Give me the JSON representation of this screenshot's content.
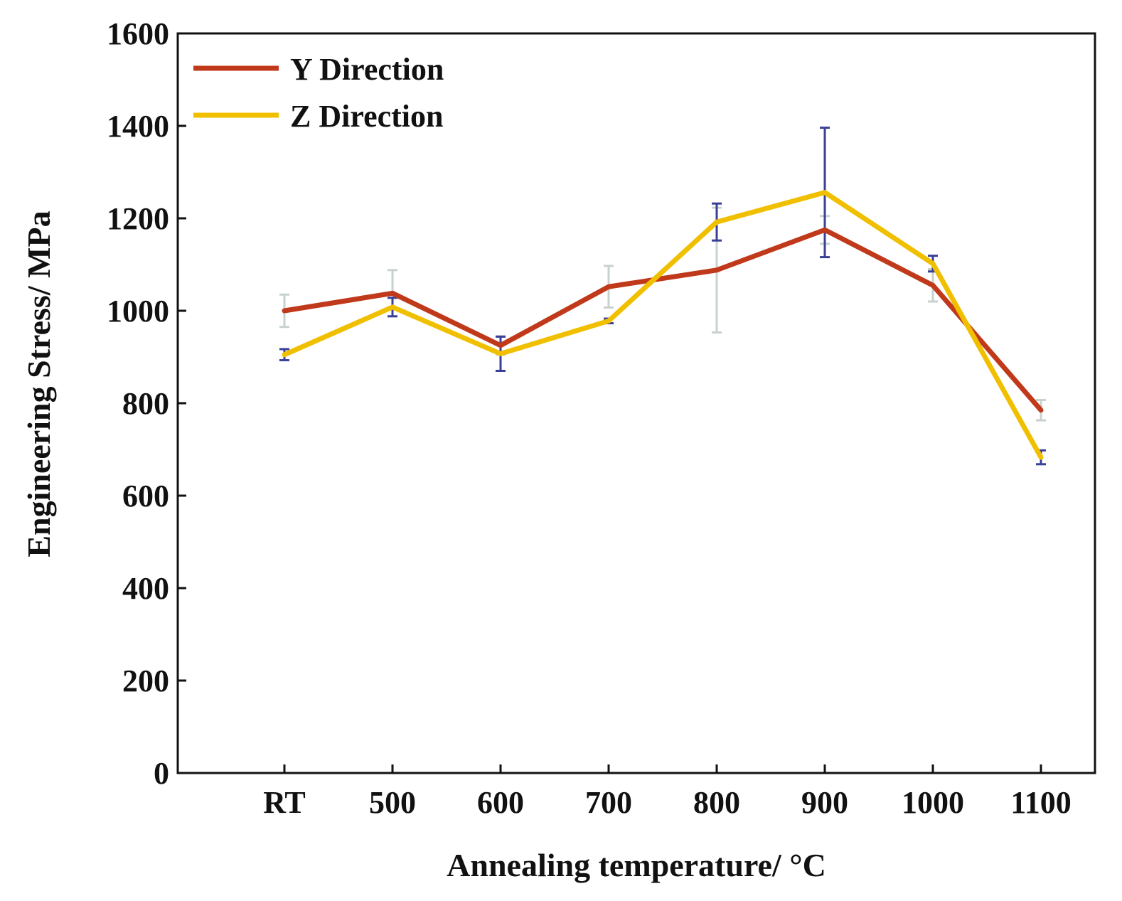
{
  "chart_data": {
    "type": "line",
    "xlabel": "Annealing temperature/ °C",
    "ylabel": "Engineering Stress/ MPa",
    "categories": [
      "RT",
      "500",
      "600",
      "700",
      "800",
      "900",
      "1000",
      "1100"
    ],
    "ylim": [
      0,
      1600
    ],
    "yticks": [
      "0",
      "200",
      "400",
      "600",
      "800",
      "1000",
      "1200",
      "1400",
      "1600"
    ],
    "legend_position": "top-left",
    "grid": false,
    "series": [
      {
        "name": "Y Direction",
        "color": "#c0391a",
        "errorbar_color": "#c8d2cc",
        "values": [
          1000,
          1038,
          925,
          1052,
          1088,
          1175,
          1055,
          785
        ],
        "errors": [
          35,
          50,
          20,
          45,
          135,
          30,
          35,
          22
        ]
      },
      {
        "name": "Z Direction",
        "color": "#f0c000",
        "errorbar_color": "#3a3f98",
        "values": [
          905,
          1008,
          907,
          978,
          1192,
          1256,
          1102,
          683
        ],
        "errors": [
          12,
          20,
          37,
          5,
          40,
          140,
          17,
          15
        ]
      }
    ]
  }
}
